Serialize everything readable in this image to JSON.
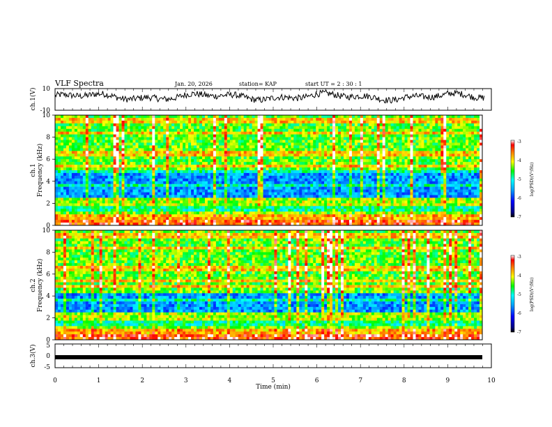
{
  "header": {
    "title": "VLF Spectra",
    "date": "Jan. 20, 2026",
    "station": "station= KAP",
    "start_ut": "start  UT =   2  : 30 : 1"
  },
  "chart_data": [
    {
      "type": "line",
      "name": "ch1-waveform",
      "ylabel": "ch.1(V)",
      "ylim": [
        -10,
        10
      ],
      "yticks": [
        10,
        -10
      ],
      "x_range_min": [
        0,
        9.85
      ],
      "description_values": "noisy waveform mostly between -5 and 7 V"
    },
    {
      "type": "heatmap",
      "name": "ch1-spectrogram",
      "ylabel_line1": "ch.1",
      "ylabel_line2": "Frequency (kHz)",
      "ylim": [
        0,
        10
      ],
      "yticks": [
        0,
        2,
        4,
        6,
        8,
        10
      ],
      "colorbar": {
        "label": "log(PSD)(V²/Hz)",
        "range": [
          -7,
          -3
        ],
        "ticks": [
          "-3",
          "-4",
          "-5",
          "-6",
          "-7"
        ]
      }
    },
    {
      "type": "heatmap",
      "name": "ch2-spectrogram",
      "ylabel_line1": "ch.2",
      "ylabel_line2": "Frequency (kHz)",
      "ylim": [
        0,
        10
      ],
      "yticks": [
        0,
        2,
        4,
        6,
        8,
        10
      ],
      "colorbar": {
        "label": "log(PSD)(V²/Hz)",
        "range": [
          -7,
          -3
        ],
        "ticks": [
          "-3",
          "-4",
          "-5",
          "-6",
          "-7"
        ]
      }
    },
    {
      "type": "line",
      "name": "ch3-waveform",
      "ylabel": "ch.3(V)",
      "ylim": [
        -5,
        5
      ],
      "yticks": [
        5,
        0,
        -5
      ],
      "constant_value": -0.6
    }
  ],
  "xaxis": {
    "label": "Time  (min)",
    "range": [
      0,
      10
    ],
    "ticks": [
      "0",
      "1",
      "2",
      "3",
      "4",
      "5",
      "6",
      "7",
      "8",
      "9",
      "10"
    ]
  }
}
